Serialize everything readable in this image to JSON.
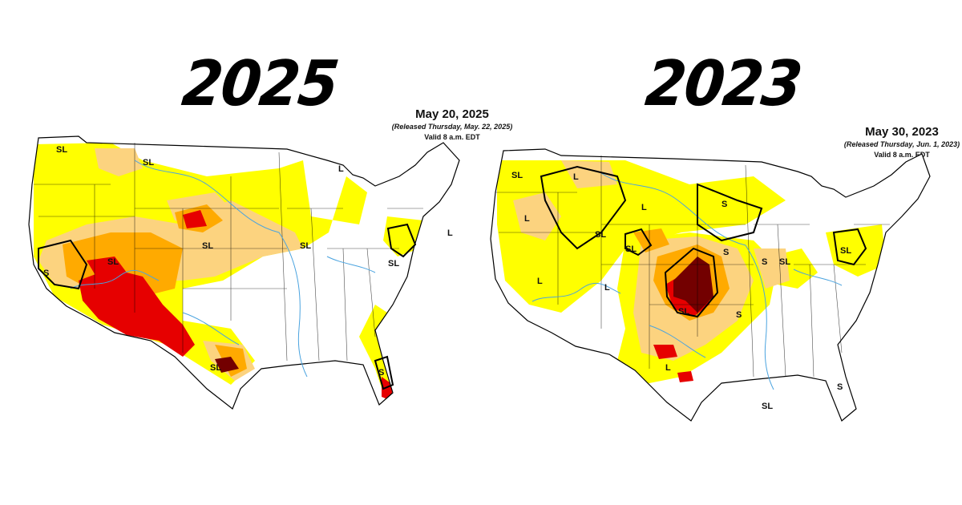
{
  "left": {
    "year": "2025",
    "date": "May 20, 2025",
    "released": "(Released Thursday, May. 22, 2025)",
    "valid": "Valid 8 a.m. EDT",
    "labels": [
      "SL",
      "SL",
      "L",
      "SL",
      "SL",
      "L",
      "SL",
      "S",
      "SL",
      "S",
      "SL"
    ]
  },
  "right": {
    "year": "2023",
    "date": "May 30, 2023",
    "released": "(Released Thursday, Jun. 1, 2023)",
    "valid": "Valid 8 a.m. EDT",
    "labels": [
      "SL",
      "L",
      "L",
      "SL",
      "SL",
      "L",
      "S",
      "S",
      "SL",
      "S",
      "SL",
      "L",
      "L",
      "SL",
      "S",
      "L",
      "S",
      "SL"
    ]
  },
  "colors": {
    "none": "#ffffff",
    "D0": "#ffff00",
    "D1": "#fcd37f",
    "D2": "#ffaa00",
    "D3": "#e60000",
    "D4": "#730000",
    "border": "#000000",
    "rivers": "#4aa3df"
  }
}
